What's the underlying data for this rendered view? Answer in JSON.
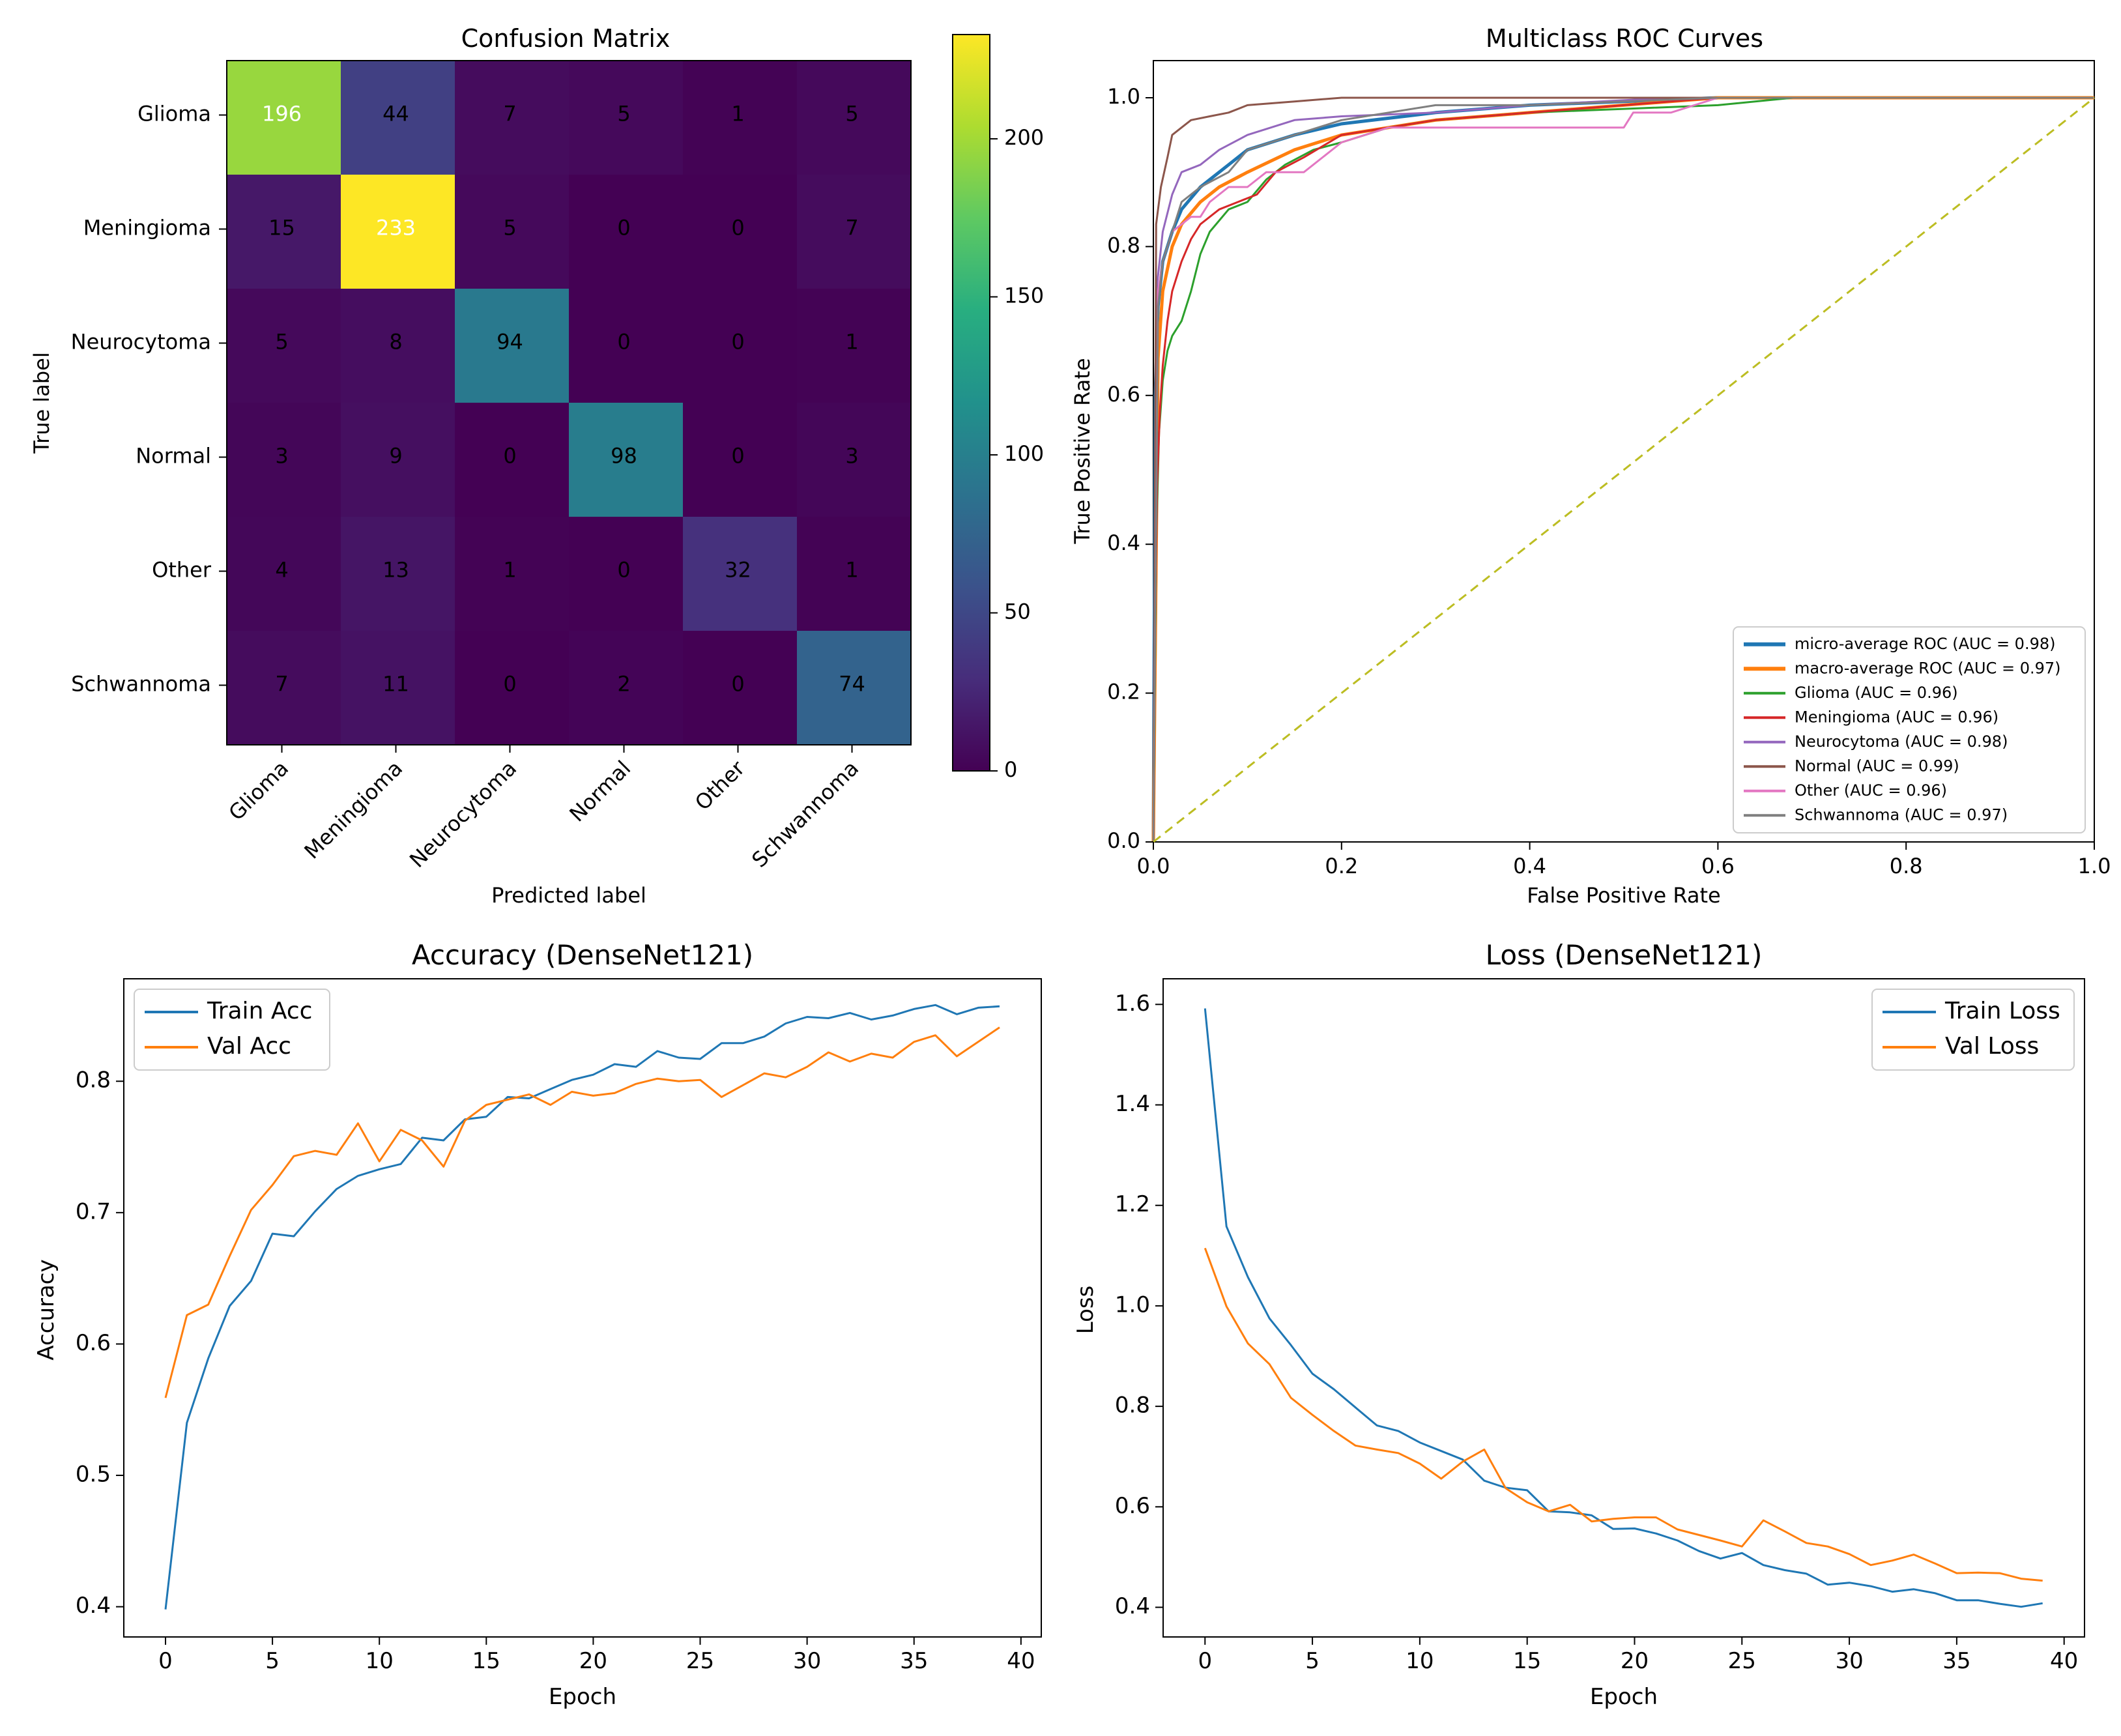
{
  "chart_data": [
    {
      "type": "heatmap",
      "title": "Confusion Matrix",
      "xlabel": "Predicted label",
      "ylabel": "True label",
      "categories": [
        "Glioma",
        "Meningioma",
        "Neurocytoma",
        "Normal",
        "Other",
        "Schwannoma"
      ],
      "matrix": [
        [
          196,
          44,
          7,
          5,
          1,
          5
        ],
        [
          15,
          233,
          5,
          0,
          0,
          7
        ],
        [
          5,
          8,
          94,
          0,
          0,
          1
        ],
        [
          3,
          9,
          0,
          98,
          0,
          3
        ],
        [
          4,
          13,
          1,
          0,
          32,
          1
        ],
        [
          7,
          11,
          0,
          2,
          0,
          74
        ]
      ],
      "colorbar": {
        "min": 0,
        "max": 233,
        "ticks": [
          0,
          50,
          100,
          150,
          200
        ]
      }
    },
    {
      "type": "line",
      "title": "Multiclass ROC Curves",
      "xlabel": "False Positive Rate",
      "ylabel": "True Positive Rate",
      "xlim": [
        0,
        1
      ],
      "ylim": [
        0,
        1
      ],
      "xticks": [
        "0.0",
        "0.2",
        "0.4",
        "0.6",
        "0.8",
        "1.0"
      ],
      "yticks": [
        "0.0",
        "0.2",
        "0.4",
        "0.6",
        "0.8",
        "1.0"
      ],
      "legend_position": "lower-right",
      "series": [
        {
          "name": "micro-average ROC (AUC = 0.98)",
          "color": "#1f77b4",
          "x": [
            0,
            0.002,
            0.005,
            0.01,
            0.02,
            0.03,
            0.05,
            0.08,
            0.1,
            0.15,
            0.2,
            0.3,
            0.4,
            0.5,
            0.6,
            1.0
          ],
          "y": [
            0,
            0.6,
            0.72,
            0.78,
            0.82,
            0.85,
            0.88,
            0.91,
            0.93,
            0.95,
            0.965,
            0.98,
            0.99,
            0.995,
            1.0,
            1.0
          ]
        },
        {
          "name": "macro-average ROC (AUC = 0.97)",
          "color": "#ff7f0e",
          "x": [
            0,
            0.005,
            0.01,
            0.02,
            0.03,
            0.05,
            0.07,
            0.1,
            0.15,
            0.2,
            0.3,
            0.4,
            0.5,
            0.6,
            1.0
          ],
          "y": [
            0,
            0.65,
            0.74,
            0.8,
            0.83,
            0.86,
            0.88,
            0.9,
            0.93,
            0.95,
            0.97,
            0.98,
            0.99,
            1.0,
            1.0
          ]
        },
        {
          "name": "Glioma (AUC = 0.96)",
          "color": "#2ca02c",
          "x": [
            0,
            0.003,
            0.006,
            0.01,
            0.015,
            0.02,
            0.03,
            0.04,
            0.05,
            0.06,
            0.08,
            0.1,
            0.12,
            0.14,
            0.17,
            0.2,
            0.25,
            0.3,
            0.4,
            0.5,
            0.6,
            0.68,
            1.0
          ],
          "y": [
            0,
            0.4,
            0.55,
            0.62,
            0.66,
            0.68,
            0.7,
            0.74,
            0.79,
            0.82,
            0.85,
            0.86,
            0.89,
            0.91,
            0.93,
            0.94,
            0.96,
            0.97,
            0.98,
            0.985,
            0.99,
            1.0,
            1.0
          ]
        },
        {
          "name": "Meningioma (AUC = 0.96)",
          "color": "#d62728",
          "x": [
            0,
            0.002,
            0.004,
            0.007,
            0.01,
            0.015,
            0.02,
            0.03,
            0.04,
            0.05,
            0.07,
            0.09,
            0.11,
            0.13,
            0.16,
            0.2,
            0.25,
            0.3,
            0.4,
            0.5,
            0.6,
            1.0
          ],
          "y": [
            0,
            0.3,
            0.48,
            0.58,
            0.64,
            0.7,
            0.74,
            0.78,
            0.81,
            0.83,
            0.85,
            0.86,
            0.87,
            0.9,
            0.92,
            0.95,
            0.96,
            0.97,
            0.98,
            0.99,
            1.0,
            1.0
          ]
        },
        {
          "name": "Neurocytoma (AUC = 0.98)",
          "color": "#9467bd",
          "x": [
            0,
            0.004,
            0.01,
            0.02,
            0.03,
            0.05,
            0.07,
            0.1,
            0.15,
            0.2,
            0.3,
            0.4,
            0.55,
            1.0
          ],
          "y": [
            0,
            0.75,
            0.82,
            0.87,
            0.9,
            0.91,
            0.93,
            0.95,
            0.97,
            0.975,
            0.98,
            0.99,
            1.0,
            1.0
          ]
        },
        {
          "name": "Normal (AUC = 0.99)",
          "color": "#8c564b",
          "x": [
            0,
            0.003,
            0.008,
            0.015,
            0.02,
            0.03,
            0.04,
            0.06,
            0.08,
            0.1,
            0.15,
            0.2,
            0.25,
            1.0
          ],
          "y": [
            0,
            0.83,
            0.88,
            0.92,
            0.95,
            0.96,
            0.97,
            0.975,
            0.98,
            0.99,
            0.995,
            1.0,
            1.0,
            1.0
          ]
        },
        {
          "name": "Other (AUC = 0.96)",
          "color": "#e377c2",
          "x": [
            0,
            0.005,
            0.01,
            0.02,
            0.04,
            0.05,
            0.06,
            0.08,
            0.1,
            0.12,
            0.16,
            0.2,
            0.25,
            0.3,
            0.4,
            0.5,
            0.51,
            0.55,
            0.6,
            1.0
          ],
          "y": [
            0,
            0.74,
            0.78,
            0.82,
            0.84,
            0.84,
            0.86,
            0.88,
            0.88,
            0.9,
            0.9,
            0.94,
            0.96,
            0.96,
            0.96,
            0.96,
            0.98,
            0.98,
            1.0,
            1.0
          ]
        },
        {
          "name": "Schwannoma (AUC = 0.97)",
          "color": "#7f7f7f",
          "x": [
            0,
            0.005,
            0.01,
            0.02,
            0.03,
            0.05,
            0.08,
            0.1,
            0.15,
            0.2,
            0.25,
            0.3,
            0.4,
            0.5,
            0.6,
            1.0
          ],
          "y": [
            0,
            0.72,
            0.78,
            0.82,
            0.86,
            0.88,
            0.9,
            0.93,
            0.95,
            0.97,
            0.98,
            0.99,
            0.99,
            0.995,
            1.0,
            1.0
          ]
        },
        {
          "name": "",
          "color": "#bcbd22",
          "dashed": true,
          "x": [
            0,
            1
          ],
          "y": [
            0,
            1
          ]
        }
      ]
    },
    {
      "type": "line",
      "title": "Accuracy (DenseNet121)",
      "xlabel": "Epoch",
      "ylabel": "Accuracy",
      "xlim": [
        -1.95,
        40.95
      ],
      "ylim": [
        0.377,
        0.878
      ],
      "xticks": [
        0,
        5,
        10,
        15,
        20,
        25,
        30,
        35,
        40
      ],
      "yticks": [
        "0.4",
        "0.5",
        "0.6",
        "0.7",
        "0.8"
      ],
      "legend_position": "top-left",
      "series": [
        {
          "name": "Train Acc",
          "color": "#1f77b4",
          "values": [
            0.398,
            0.54,
            0.589,
            0.629,
            0.648,
            0.684,
            0.682,
            0.701,
            0.718,
            0.728,
            0.733,
            0.737,
            0.757,
            0.755,
            0.771,
            0.773,
            0.788,
            0.787,
            0.794,
            0.801,
            0.805,
            0.813,
            0.811,
            0.823,
            0.818,
            0.817,
            0.829,
            0.829,
            0.834,
            0.844,
            0.849,
            0.848,
            0.852,
            0.847,
            0.85,
            0.855,
            0.858,
            0.851,
            0.856,
            0.857
          ]
        },
        {
          "name": "Val Acc",
          "color": "#ff7f0e",
          "values": [
            0.559,
            0.622,
            0.63,
            0.667,
            0.702,
            0.721,
            0.743,
            0.747,
            0.744,
            0.768,
            0.739,
            0.763,
            0.755,
            0.735,
            0.77,
            0.782,
            0.786,
            0.79,
            0.782,
            0.792,
            0.789,
            0.791,
            0.798,
            0.802,
            0.8,
            0.801,
            0.788,
            0.797,
            0.806,
            0.803,
            0.811,
            0.822,
            0.815,
            0.821,
            0.818,
            0.83,
            0.835,
            0.819,
            0.83,
            0.841
          ]
        }
      ]
    },
    {
      "type": "line",
      "title": "Loss (DenseNet121)",
      "xlabel": "Epoch",
      "ylabel": "Loss",
      "xlim": [
        -1.95,
        40.95
      ],
      "ylim": [
        0.341,
        1.651
      ],
      "xticks": [
        0,
        5,
        10,
        15,
        20,
        25,
        30,
        35,
        40
      ],
      "yticks": [
        "0.4",
        "0.6",
        "0.8",
        "1.0",
        "1.2",
        "1.4",
        "1.6"
      ],
      "legend_position": "top-right",
      "series": [
        {
          "name": "Train Loss",
          "color": "#1f77b4",
          "values": [
            1.592,
            1.158,
            1.057,
            0.975,
            0.922,
            0.865,
            0.834,
            0.798,
            0.762,
            0.751,
            0.728,
            0.711,
            0.694,
            0.652,
            0.638,
            0.633,
            0.591,
            0.589,
            0.583,
            0.556,
            0.557,
            0.547,
            0.533,
            0.512,
            0.497,
            0.508,
            0.484,
            0.474,
            0.467,
            0.445,
            0.449,
            0.442,
            0.431,
            0.436,
            0.428,
            0.414,
            0.414,
            0.407,
            0.401,
            0.408
          ]
        },
        {
          "name": "Val Loss",
          "color": "#ff7f0e",
          "values": [
            1.115,
            0.999,
            0.925,
            0.884,
            0.817,
            0.783,
            0.751,
            0.722,
            0.714,
            0.707,
            0.686,
            0.656,
            0.69,
            0.714,
            0.637,
            0.609,
            0.591,
            0.604,
            0.571,
            0.576,
            0.579,
            0.579,
            0.555,
            0.544,
            0.533,
            0.521,
            0.573,
            0.551,
            0.528,
            0.521,
            0.506,
            0.484,
            0.493,
            0.505,
            0.487,
            0.468,
            0.469,
            0.468,
            0.457,
            0.453
          ]
        }
      ]
    }
  ]
}
